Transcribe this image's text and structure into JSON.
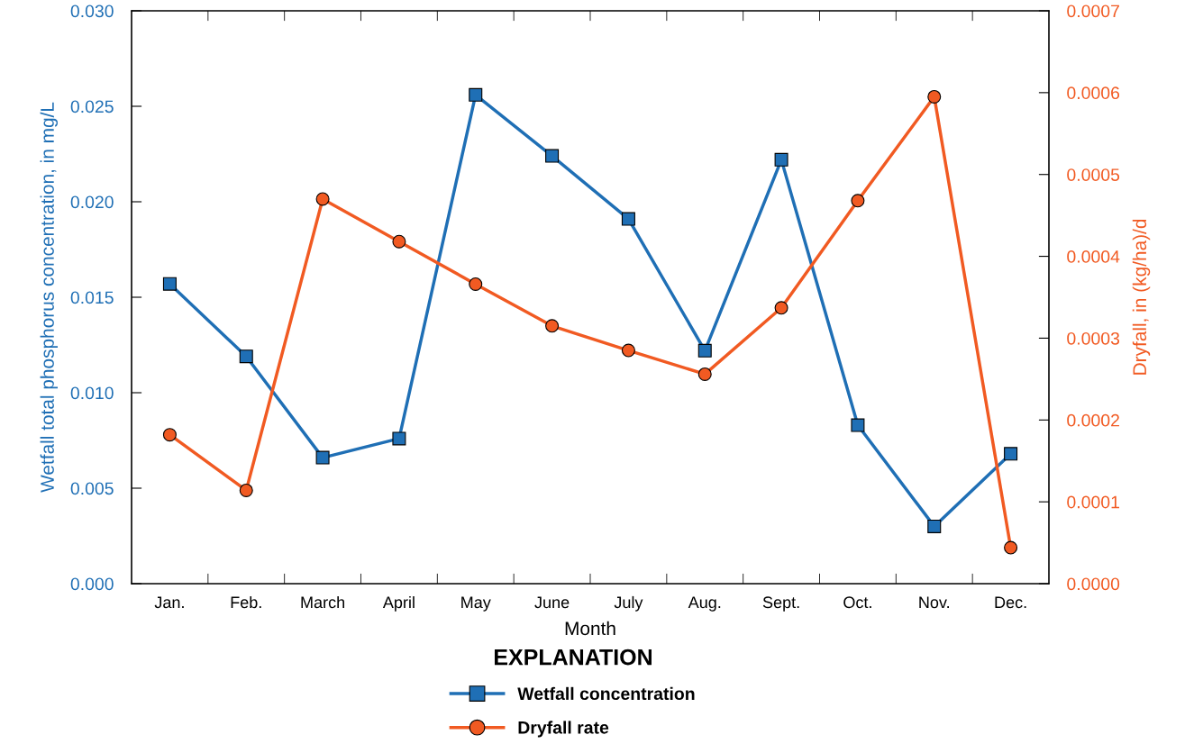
{
  "chart_data": {
    "type": "line",
    "xlabel": "Month",
    "ylabel": "Wetfall total phosphorus concentration, in mg/L",
    "y2label": "Dryfall, in (kg/ha)/d",
    "legend_title": "EXPLANATION",
    "legend": "bottom",
    "grid": false,
    "line_style": "solid",
    "categories": [
      "Jan.",
      "Feb.",
      "March",
      "April",
      "May",
      "June",
      "July",
      "Aug.",
      "Sept.",
      "Oct.",
      "Nov.",
      "Dec."
    ],
    "ylim": [
      0,
      0.03
    ],
    "yticks": [
      {
        "value": 0,
        "label": "0.000"
      },
      {
        "value": 0.005,
        "label": "0.005"
      },
      {
        "value": 0.01,
        "label": "0.010"
      },
      {
        "value": 0.015,
        "label": "0.015"
      },
      {
        "value": 0.02,
        "label": "0.020"
      },
      {
        "value": 0.025,
        "label": "0.025"
      },
      {
        "value": 0.03,
        "label": "0.030"
      }
    ],
    "y2lim": [
      0,
      0.0007
    ],
    "y2ticks": [
      {
        "value": 0,
        "label": "0.0000"
      },
      {
        "value": 0.0001,
        "label": "0.0001"
      },
      {
        "value": 0.0002,
        "label": "0.0002"
      },
      {
        "value": 0.0003,
        "label": "0.0003"
      },
      {
        "value": 0.0004,
        "label": "0.0004"
      },
      {
        "value": 0.0005,
        "label": "0.0005"
      },
      {
        "value": 0.0006,
        "label": "0.0006"
      },
      {
        "value": 0.0007,
        "label": "0.0007"
      }
    ],
    "series": [
      {
        "name": "Wetfall concentration",
        "color": "#1f6fb5",
        "marker": "square",
        "values": [
          0.0157,
          0.0119,
          0.0066,
          0.0076,
          0.0256,
          0.0224,
          0.0191,
          0.0122,
          0.0222,
          0.0083,
          0.003,
          0.0068
        ]
      },
      {
        "name": "Dryfall rate",
        "color": "#f15a22",
        "marker": "circle",
        "axis": "y2",
        "values": [
          0.000182,
          0.000114,
          0.00047,
          0.000418,
          0.000366,
          0.000315,
          0.000285,
          0.000256,
          0.000337,
          0.000468,
          0.000595,
          4.4e-05
        ]
      }
    ]
  }
}
